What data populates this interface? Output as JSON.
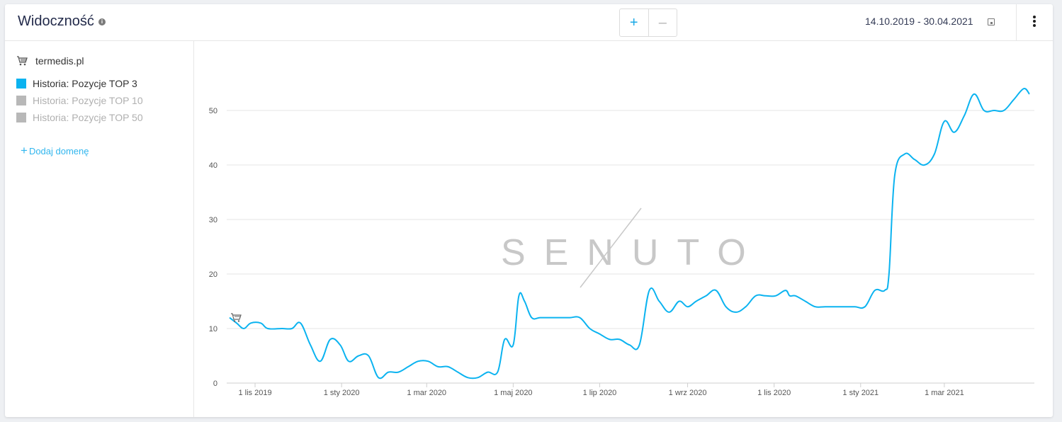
{
  "header": {
    "title": "Widoczność",
    "info_icon": "info-icon",
    "zoom_in": "+",
    "zoom_out": "–",
    "date_range": "14.10.2019 - 30.04.2021",
    "calendar_icon": "calendar-icon",
    "menu_icon": "kebab-menu-icon"
  },
  "sidebar": {
    "domain": "termedis.pl",
    "domain_icon": "cart-icon",
    "legend": [
      {
        "label": "Historia: Pozycje TOP 3",
        "color": "#0bb3f0",
        "active": true
      },
      {
        "label": "Historia: Pozycje TOP 10",
        "color": "#b8b8b8",
        "active": false
      },
      {
        "label": "Historia: Pozycje TOP 50",
        "color": "#b8b8b8",
        "active": false
      }
    ],
    "add_domain": "Dodaj domenę"
  },
  "watermark": "SENUTO",
  "chart_data": {
    "type": "line",
    "title": "",
    "xlabel": "",
    "ylabel": "",
    "ylim": [
      0,
      50
    ],
    "yticks": [
      0,
      10,
      20,
      30,
      40,
      50
    ],
    "xticks": [
      "1 lis 2019",
      "1 sty 2020",
      "1 mar 2020",
      "1 maj 2020",
      "1 lip 2020",
      "1 wrz 2020",
      "1 lis 2020",
      "1 sty 2021",
      "1 mar 2021"
    ],
    "grid": true,
    "line_color": "#0bb3f0",
    "series": [
      {
        "name": "Historia: Pozycje TOP 3",
        "x": [
          "2019-10-14",
          "2019-10-19",
          "2019-10-24",
          "2019-10-29",
          "2019-11-05",
          "2019-11-10",
          "2019-11-20",
          "2019-11-27",
          "2019-12-03",
          "2019-12-10",
          "2019-12-17",
          "2019-12-24",
          "2019-12-31",
          "2020-01-06",
          "2020-01-13",
          "2020-01-20",
          "2020-01-27",
          "2020-02-03",
          "2020-02-10",
          "2020-02-17",
          "2020-02-24",
          "2020-03-02",
          "2020-03-09",
          "2020-03-16",
          "2020-03-23",
          "2020-03-30",
          "2020-04-06",
          "2020-04-13",
          "2020-04-20",
          "2020-04-25",
          "2020-05-01",
          "2020-05-05",
          "2020-05-09",
          "2020-05-14",
          "2020-05-20",
          "2020-05-27",
          "2020-06-03",
          "2020-06-10",
          "2020-06-17",
          "2020-06-24",
          "2020-07-01",
          "2020-07-08",
          "2020-07-15",
          "2020-07-22",
          "2020-07-29",
          "2020-08-05",
          "2020-08-12",
          "2020-08-19",
          "2020-08-26",
          "2020-09-01",
          "2020-09-07",
          "2020-09-14",
          "2020-09-21",
          "2020-09-28",
          "2020-10-05",
          "2020-10-12",
          "2020-10-19",
          "2020-10-26",
          "2020-11-02",
          "2020-11-09",
          "2020-11-12",
          "2020-11-16",
          "2020-11-23",
          "2020-11-30",
          "2020-12-07",
          "2020-12-14",
          "2020-12-21",
          "2020-12-28",
          "2021-01-04",
          "2021-01-11",
          "2021-01-18",
          "2021-01-21",
          "2021-01-25",
          "2021-02-01",
          "2021-02-08",
          "2021-02-15",
          "2021-02-22",
          "2021-03-01",
          "2021-03-08",
          "2021-03-15",
          "2021-03-22",
          "2021-03-29",
          "2021-04-05",
          "2021-04-12",
          "2021-04-19",
          "2021-04-26",
          "2021-04-30"
        ],
        "values": [
          12,
          11,
          10,
          11,
          11,
          10,
          10,
          10,
          11,
          7,
          4,
          8,
          7,
          4,
          5,
          5,
          1,
          2,
          2,
          3,
          4,
          4,
          3,
          3,
          2,
          1,
          1,
          2,
          2,
          8,
          7,
          16,
          15,
          12,
          12,
          12,
          12,
          12,
          12,
          10,
          9,
          8,
          8,
          7,
          7,
          17,
          15,
          13,
          15,
          14,
          15,
          16,
          17,
          14,
          13,
          14,
          16,
          16,
          16,
          17,
          16,
          16,
          15,
          14,
          14,
          14,
          14,
          14,
          14,
          17,
          17,
          20,
          38,
          42,
          41,
          40,
          42,
          48,
          46,
          49,
          53,
          50,
          50,
          50,
          52,
          54,
          53
        ]
      }
    ]
  }
}
